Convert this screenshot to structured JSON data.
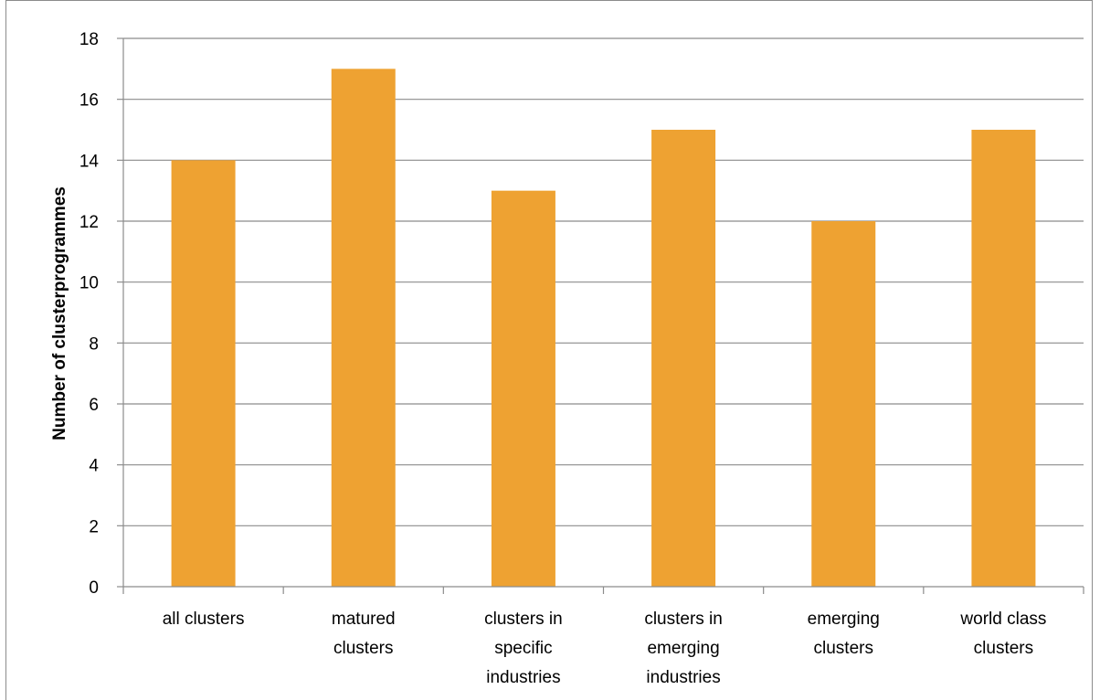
{
  "chart_data": {
    "type": "bar",
    "title": "",
    "xlabel": "",
    "ylabel": "Number of clusterprogrammes",
    "ylim": [
      0,
      18
    ],
    "yticks": [
      0,
      2,
      4,
      6,
      8,
      10,
      12,
      14,
      16,
      18
    ],
    "grid": true,
    "legend": "none",
    "bar_color": "#eea232",
    "categories": [
      [
        "all clusters"
      ],
      [
        "matured",
        "clusters"
      ],
      [
        "clusters in",
        "specific",
        "industries"
      ],
      [
        "clusters in",
        "emerging",
        "industries"
      ],
      [
        "emerging",
        "clusters"
      ],
      [
        "world class",
        "clusters"
      ]
    ],
    "values": [
      14,
      17,
      13,
      15,
      12,
      15
    ]
  }
}
